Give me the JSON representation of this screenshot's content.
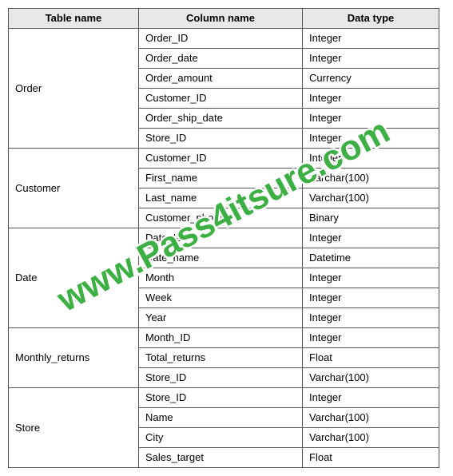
{
  "headers": [
    "Table name",
    "Column name",
    "Data type"
  ],
  "tables": [
    {
      "name": "Order",
      "rows": [
        {
          "col": "Order_ID",
          "type": "Integer"
        },
        {
          "col": "Order_date",
          "type": "Integer"
        },
        {
          "col": "Order_amount",
          "type": "Currency"
        },
        {
          "col": "Customer_ID",
          "type": "Integer"
        },
        {
          "col": "Order_ship_date",
          "type": "Integer"
        },
        {
          "col": "Store_ID",
          "type": "Integer"
        }
      ]
    },
    {
      "name": "Customer",
      "rows": [
        {
          "col": "Customer_ID",
          "type": "Integer"
        },
        {
          "col": "First_name",
          "type": "Varchar(100)"
        },
        {
          "col": "Last_name",
          "type": "Varchar(100)"
        },
        {
          "col": "Customer_photo",
          "type": "Binary"
        }
      ]
    },
    {
      "name": "Date",
      "rows": [
        {
          "col": "Date_ID",
          "type": "Integer"
        },
        {
          "col": "Date_name",
          "type": "Datetime"
        },
        {
          "col": "Month",
          "type": "Integer"
        },
        {
          "col": "Week",
          "type": "Integer"
        },
        {
          "col": "Year",
          "type": "Integer"
        }
      ]
    },
    {
      "name": "Monthly_returns",
      "rows": [
        {
          "col": "Month_ID",
          "type": "Integer"
        },
        {
          "col": "Total_returns",
          "type": "Float"
        },
        {
          "col": "Store_ID",
          "type": "Varchar(100)"
        }
      ]
    },
    {
      "name": "Store",
      "rows": [
        {
          "col": "Store_ID",
          "type": "Integer"
        },
        {
          "col": "Name",
          "type": "Varchar(100)"
        },
        {
          "col": "City",
          "type": "Varchar(100)"
        },
        {
          "col": "Sales_target",
          "type": "Float"
        }
      ]
    }
  ],
  "watermark": "www.Pass4itsure.com",
  "colors": {
    "header_bg": "#e8e8e8",
    "border": "#555555",
    "watermark": "#3cb043",
    "watermark_outline": "#ffffff"
  }
}
